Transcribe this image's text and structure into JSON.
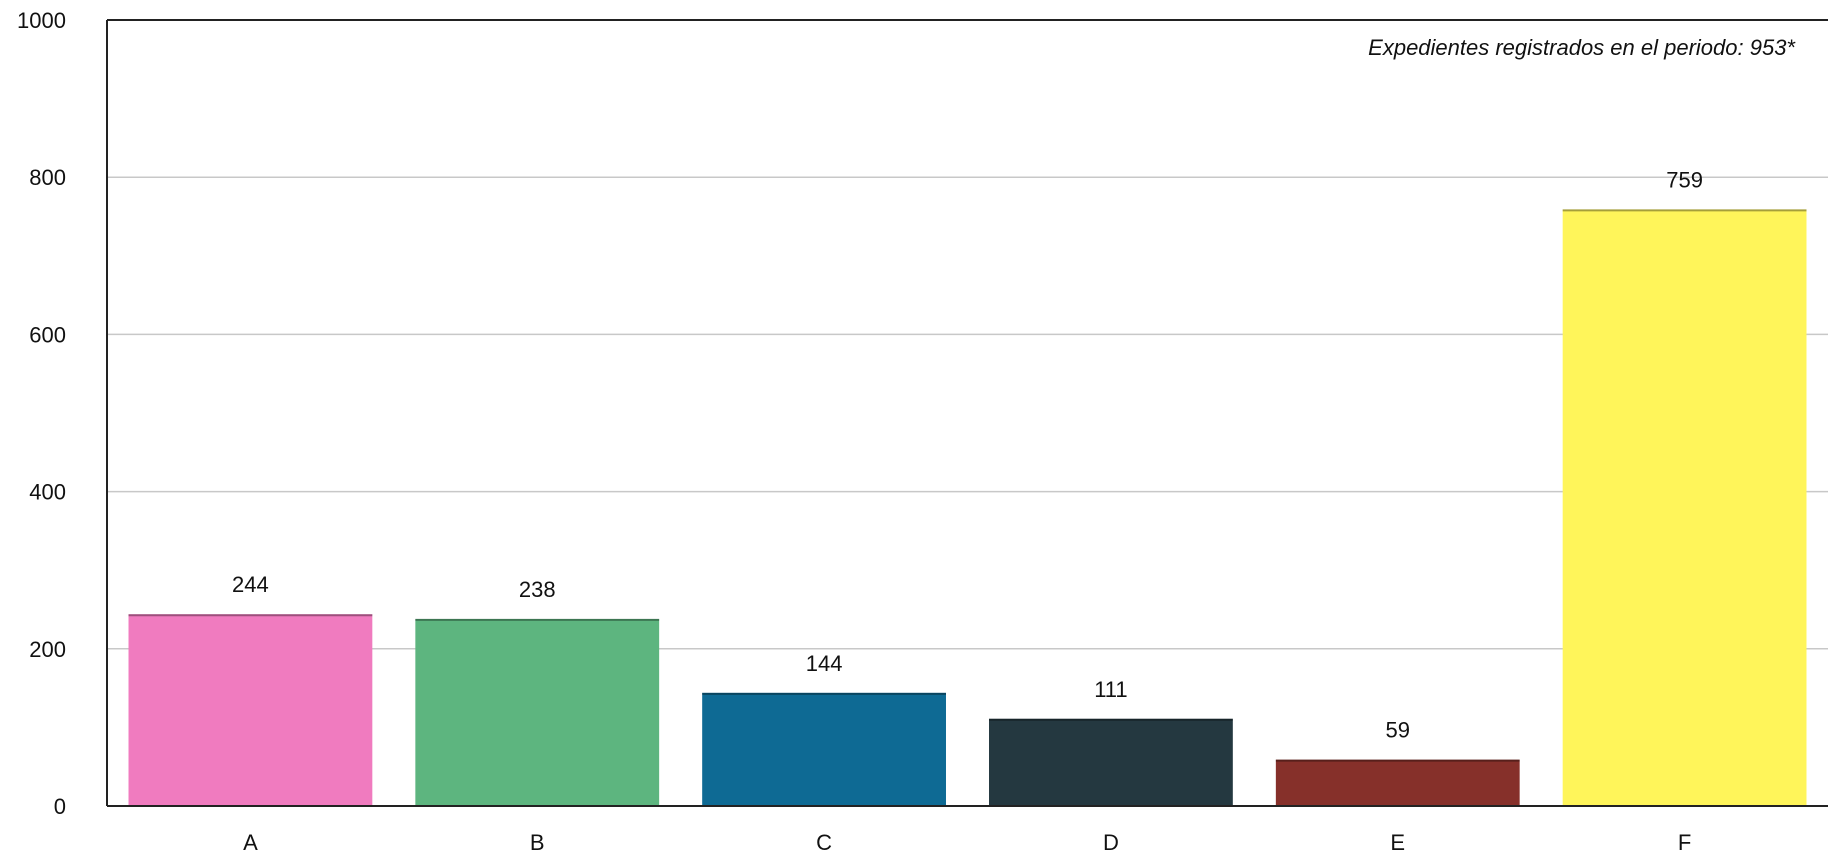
{
  "chart_data": {
    "type": "bar",
    "categories": [
      "A",
      "B",
      "C",
      "D",
      "E",
      "F"
    ],
    "values": [
      244,
      238,
      144,
      111,
      59,
      759
    ],
    "colors": [
      "#f07bbf",
      "#5db57f",
      "#0e6a94",
      "#243840",
      "#86302a",
      "#fff55a"
    ],
    "ylim": [
      0,
      1000
    ],
    "yticks": [
      0,
      200,
      400,
      600,
      800,
      1000
    ],
    "annotation": "Expedientes registrados en el periodo:  953*",
    "grid": true,
    "title": "",
    "xlabel": "",
    "ylabel": ""
  }
}
